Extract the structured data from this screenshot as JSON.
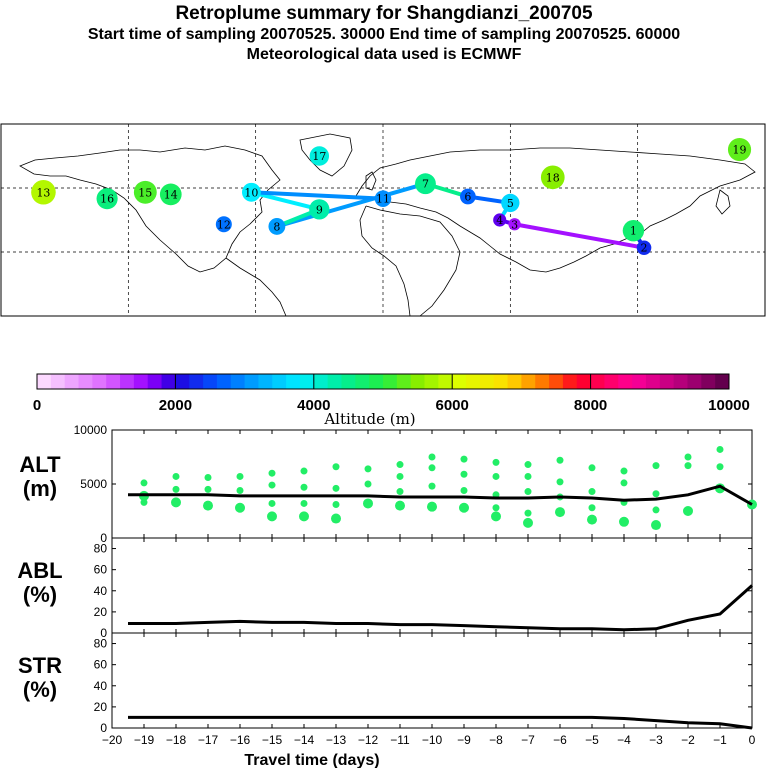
{
  "title": "Retroplume summary for Shangdianzi_200705",
  "subtitle1": "Start time of sampling 20070525. 30000     End time of sampling 20070525. 60000",
  "subtitle2": "Meteorological data used is ECMWF",
  "chart_data": [
    {
      "type": "map",
      "description_text": "",
      "trajectory_points": [
        {
          "label": "1",
          "lon": 118,
          "lat": 40,
          "alt": 4700
        },
        {
          "label": "2",
          "lon": 123,
          "lat": 32,
          "alt": 2300
        },
        {
          "label": "3",
          "lon": 62,
          "lat": 43,
          "alt": 1500
        },
        {
          "label": "4",
          "lon": 55,
          "lat": 45,
          "alt": 1800
        },
        {
          "label": "5",
          "lon": 60,
          "lat": 53,
          "alt": 3600
        },
        {
          "label": "6",
          "lon": 40,
          "lat": 56,
          "alt": 2700
        },
        {
          "label": "7",
          "lon": 20,
          "lat": 62,
          "alt": 4500
        },
        {
          "label": "8",
          "lon": -50,
          "lat": 42,
          "alt": 3100
        },
        {
          "label": "9",
          "lon": -30,
          "lat": 50,
          "alt": 4300
        },
        {
          "label": "10",
          "lon": -62,
          "lat": 58,
          "alt": 3800
        },
        {
          "label": "11",
          "lon": 0,
          "lat": 55,
          "alt": 3000
        },
        {
          "label": "12",
          "lon": -75,
          "lat": 43,
          "alt": 2800
        },
        {
          "label": "13",
          "lon": -160,
          "lat": 58,
          "alt": 5800
        },
        {
          "label": "14",
          "lon": -100,
          "lat": 57,
          "alt": 4800
        },
        {
          "label": "15",
          "lon": -112,
          "lat": 58,
          "alt": 5200
        },
        {
          "label": "16",
          "lon": -130,
          "lat": 55,
          "alt": 4600
        },
        {
          "label": "17",
          "lon": -30,
          "lat": 75,
          "alt": 4000
        },
        {
          "label": "18",
          "lon": 80,
          "lat": 65,
          "alt": 5500
        },
        {
          "label": "19",
          "lon": 168,
          "lat": 78,
          "alt": 5300
        }
      ]
    },
    {
      "type": "colorbar",
      "title": "Altitude (m)",
      "range": [
        0,
        10000
      ],
      "ticks": [
        "0",
        "2000",
        "4000",
        "6000",
        "8000",
        "10000"
      ]
    },
    {
      "type": "line",
      "panel": "ALT",
      "ylabel_line1": "ALT",
      "ylabel_line2": "(m)",
      "ylim": [
        0,
        10000
      ],
      "yticks": [
        "0",
        "5000",
        "10000"
      ],
      "x": [
        -19.5,
        -19,
        -18,
        -17,
        -16,
        -15,
        -14,
        -13,
        -12,
        -11,
        -10,
        -9,
        -8,
        -7,
        -6,
        -5,
        -4,
        -3,
        -2,
        -1,
        0
      ],
      "values": [
        4000,
        4000,
        4000,
        4000,
        3900,
        3900,
        3900,
        3900,
        3900,
        3800,
        3800,
        3800,
        3700,
        3700,
        3800,
        3700,
        3500,
        3600,
        4000,
        4800,
        3100
      ],
      "scatter": [
        {
          "x": -19,
          "y": [
            5100,
            3300,
            3900
          ]
        },
        {
          "x": -18,
          "y": [
            5700,
            4500,
            3300
          ]
        },
        {
          "x": -17,
          "y": [
            5600,
            4500,
            3000
          ]
        },
        {
          "x": -16,
          "y": [
            5700,
            4400,
            2800
          ]
        },
        {
          "x": -15,
          "y": [
            6000,
            4900,
            3200,
            2000
          ]
        },
        {
          "x": -14,
          "y": [
            6200,
            4700,
            3200,
            2000
          ]
        },
        {
          "x": -13,
          "y": [
            6600,
            4600,
            3100,
            1800
          ]
        },
        {
          "x": -12,
          "y": [
            6400,
            5000,
            3200
          ]
        },
        {
          "x": -11,
          "y": [
            6800,
            5700,
            4300,
            3000
          ]
        },
        {
          "x": -10,
          "y": [
            7500,
            6500,
            4800,
            2900
          ]
        },
        {
          "x": -9,
          "y": [
            7300,
            5900,
            4400,
            2800
          ]
        },
        {
          "x": -8,
          "y": [
            7000,
            5700,
            4000,
            2800,
            2000
          ]
        },
        {
          "x": -7,
          "y": [
            6800,
            5700,
            4300,
            2300,
            1400
          ]
        },
        {
          "x": -6,
          "y": [
            7200,
            5200,
            3800,
            2400
          ]
        },
        {
          "x": -5,
          "y": [
            6500,
            4300,
            2800,
            1700
          ]
        },
        {
          "x": -4,
          "y": [
            6200,
            5100,
            3300,
            1500
          ]
        },
        {
          "x": -3,
          "y": [
            6700,
            4100,
            2600,
            1200
          ]
        },
        {
          "x": -2,
          "y": [
            7500,
            6700,
            2500
          ]
        },
        {
          "x": -1,
          "y": [
            8200,
            6600,
            4600
          ]
        },
        {
          "x": 0,
          "y": [
            3100
          ]
        }
      ]
    },
    {
      "type": "line",
      "panel": "ABL",
      "ylabel_line1": "ABL",
      "ylabel_line2": "(%)",
      "ylim": [
        0,
        90
      ],
      "yticks": [
        "0",
        "20",
        "40",
        "60",
        "80"
      ],
      "x": [
        -19.5,
        -19,
        -18,
        -17,
        -16,
        -15,
        -14,
        -13,
        -12,
        -11,
        -10,
        -9,
        -8,
        -7,
        -6,
        -5,
        -4,
        -3,
        -2,
        -1,
        0
      ],
      "values": [
        9,
        9,
        9,
        10,
        11,
        10,
        10,
        9,
        9,
        8,
        8,
        7,
        6,
        5,
        4,
        4,
        3,
        4,
        12,
        18,
        45
      ]
    },
    {
      "type": "line",
      "panel": "STR",
      "ylabel_line1": "STR",
      "ylabel_line2": "(%)",
      "ylim": [
        0,
        90
      ],
      "yticks": [
        "0",
        "20",
        "40",
        "60",
        "80"
      ],
      "x": [
        -19.5,
        -19,
        -18,
        -17,
        -16,
        -15,
        -14,
        -13,
        -12,
        -11,
        -10,
        -9,
        -8,
        -7,
        -6,
        -5,
        -4,
        -3,
        -2,
        -1,
        0
      ],
      "values": [
        10,
        10,
        10,
        10,
        10,
        10,
        10,
        10,
        10,
        10,
        10,
        10,
        10,
        10,
        10,
        10,
        9,
        7,
        5,
        4,
        0
      ],
      "xlabel": "Travel time (days)",
      "xticks": [
        "-20",
        "-19",
        "-18",
        "-17",
        "-16",
        "-15",
        "-14",
        "-13",
        "-12",
        "-11",
        "-10",
        "-9",
        "-8",
        "-7",
        "-6",
        "-5",
        "-4",
        "-3",
        "-2",
        "-1",
        "0"
      ]
    }
  ]
}
